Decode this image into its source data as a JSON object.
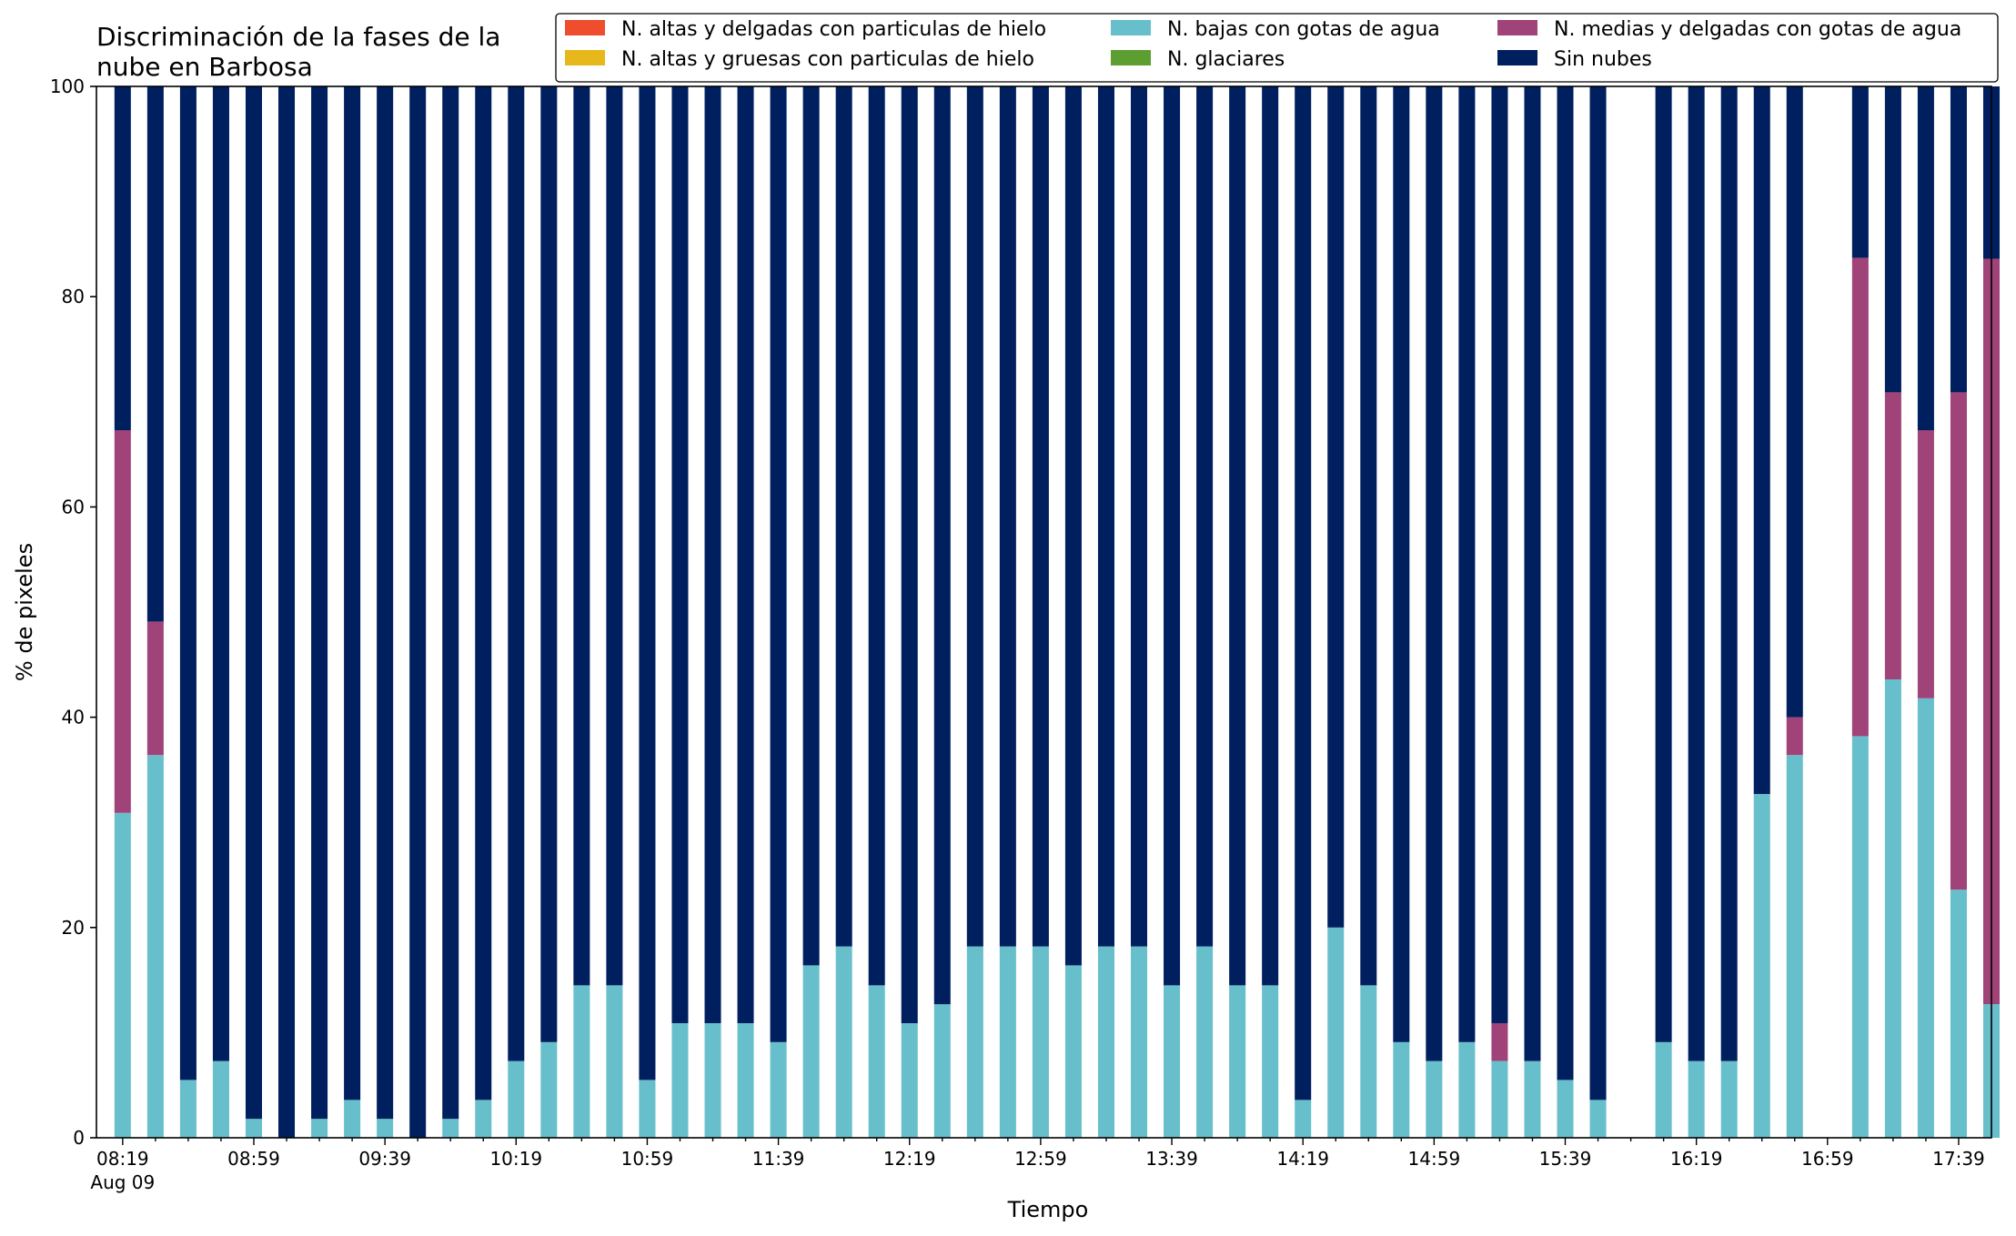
{
  "chart_data": {
    "type": "bar",
    "stacked": true,
    "title_lines": [
      "Discriminación de la fases de la",
      "nube en Barbosa"
    ],
    "xlabel": "Tiempo",
    "ylabel": "% de pixeles",
    "ylim": [
      0,
      100
    ],
    "yticks": [
      0,
      20,
      40,
      60,
      80,
      100
    ],
    "xlim_minutes": [
      -8,
      570
    ],
    "bar_width_minutes": 5,
    "date_label": "Aug 09",
    "xticks_major": [
      {
        "minute": 0,
        "label": "08:19"
      },
      {
        "minute": 40,
        "label": "08:59"
      },
      {
        "minute": 80,
        "label": "09:39"
      },
      {
        "minute": 120,
        "label": "10:19"
      },
      {
        "minute": 160,
        "label": "10:59"
      },
      {
        "minute": 200,
        "label": "11:39"
      },
      {
        "minute": 240,
        "label": "12:19"
      },
      {
        "minute": 280,
        "label": "12:59"
      },
      {
        "minute": 320,
        "label": "13:39"
      },
      {
        "minute": 360,
        "label": "14:19"
      },
      {
        "minute": 400,
        "label": "14:59"
      },
      {
        "minute": 440,
        "label": "15:39"
      },
      {
        "minute": 480,
        "label": "16:19"
      },
      {
        "minute": 520,
        "label": "16:59"
      },
      {
        "minute": 560,
        "label": "17:39"
      }
    ],
    "x_minutes": [
      0,
      10,
      20,
      30,
      40,
      50,
      60,
      70,
      80,
      90,
      100,
      110,
      120,
      130,
      140,
      150,
      160,
      170,
      180,
      190,
      200,
      210,
      220,
      230,
      240,
      250,
      260,
      270,
      280,
      290,
      300,
      310,
      320,
      330,
      340,
      350,
      360,
      370,
      380,
      390,
      400,
      410,
      420,
      430,
      440,
      450,
      470,
      480,
      490,
      500,
      510,
      530,
      540,
      550,
      560,
      570
    ],
    "series": [
      {
        "name": "N. altas y delgadas con particulas de hielo",
        "color": "#EE4D2E",
        "values": [
          0,
          0,
          0,
          0,
          0,
          0,
          0,
          0,
          0,
          0,
          0,
          0,
          0,
          0,
          0,
          0,
          0,
          0,
          0,
          0,
          0,
          0,
          0,
          0,
          0,
          0,
          0,
          0,
          0,
          0,
          0,
          0,
          0,
          0,
          0,
          0,
          0,
          0,
          0,
          0,
          0,
          0,
          0,
          0,
          0,
          0,
          0,
          0,
          0,
          0,
          0,
          0,
          0,
          0,
          0,
          0
        ]
      },
      {
        "name": "N. altas y gruesas con particulas de hielo",
        "color": "#E6B81C",
        "values": [
          0,
          0,
          0,
          0,
          0,
          0,
          0,
          0,
          0,
          0,
          0,
          0,
          0,
          0,
          0,
          0,
          0,
          0,
          0,
          0,
          0,
          0,
          0,
          0,
          0,
          0,
          0,
          0,
          0,
          0,
          0,
          0,
          0,
          0,
          0,
          0,
          0,
          0,
          0,
          0,
          0,
          0,
          0,
          0,
          0,
          0,
          0,
          0,
          0,
          0,
          0,
          0,
          0,
          0,
          0,
          0
        ]
      },
      {
        "name": "N. bajas con gotas de agua",
        "color": "#67BFCC",
        "values": [
          30.9,
          36.4,
          5.5,
          7.3,
          1.8,
          0,
          1.8,
          3.6,
          1.8,
          0,
          1.8,
          3.6,
          7.3,
          9.1,
          14.5,
          14.5,
          5.5,
          10.9,
          10.9,
          10.9,
          9.1,
          16.4,
          18.2,
          14.5,
          10.9,
          12.7,
          18.2,
          18.2,
          18.2,
          16.4,
          18.2,
          18.2,
          14.5,
          18.2,
          14.5,
          14.5,
          3.6,
          20.0,
          14.5,
          9.1,
          7.3,
          9.1,
          7.3,
          7.3,
          5.5,
          3.6,
          9.1,
          7.3,
          7.3,
          32.7,
          36.4,
          38.2,
          43.6,
          41.8,
          23.6,
          12.7
        ]
      },
      {
        "name": "N. glaciares",
        "color": "#5D9E32",
        "values": [
          0,
          0,
          0,
          0,
          0,
          0,
          0,
          0,
          0,
          0,
          0,
          0,
          0,
          0,
          0,
          0,
          0,
          0,
          0,
          0,
          0,
          0,
          0,
          0,
          0,
          0,
          0,
          0,
          0,
          0,
          0,
          0,
          0,
          0,
          0,
          0,
          0,
          0,
          0,
          0,
          0,
          0,
          0,
          0,
          0,
          0,
          0,
          0,
          0,
          0,
          0,
          0,
          0,
          0,
          0,
          0
        ]
      },
      {
        "name": "N. medias y delgadas con gotas de agua",
        "color": "#A04378",
        "values": [
          36.4,
          12.7,
          0,
          0,
          0,
          0,
          0,
          0,
          0,
          0,
          0,
          0,
          0,
          0,
          0,
          0,
          0,
          0,
          0,
          0,
          0,
          0,
          0,
          0,
          0,
          0,
          0,
          0,
          0,
          0,
          0,
          0,
          0,
          0,
          0,
          0,
          0,
          0,
          0,
          0,
          0,
          0,
          3.6,
          0,
          0,
          0,
          0,
          0,
          0,
          0,
          3.6,
          45.5,
          27.3,
          25.5,
          47.3,
          70.9
        ]
      },
      {
        "name": "Sin nubes",
        "color": "#001F5F",
        "values": [
          32.7,
          50.9,
          94.5,
          92.7,
          98.2,
          100,
          98.2,
          96.4,
          98.2,
          100,
          98.2,
          96.4,
          92.7,
          90.9,
          85.5,
          85.5,
          94.5,
          89.1,
          89.1,
          89.1,
          90.9,
          83.6,
          81.8,
          85.5,
          89.1,
          87.3,
          81.8,
          81.8,
          81.8,
          83.6,
          81.8,
          81.8,
          85.5,
          81.8,
          85.5,
          85.5,
          96.4,
          80.0,
          85.5,
          90.9,
          92.7,
          90.9,
          89.1,
          92.7,
          94.5,
          96.4,
          90.9,
          92.7,
          92.7,
          67.3,
          60.0,
          16.3,
          29.1,
          32.7,
          29.1,
          16.4
        ]
      }
    ],
    "legend_placement": "top",
    "grid": false
  }
}
